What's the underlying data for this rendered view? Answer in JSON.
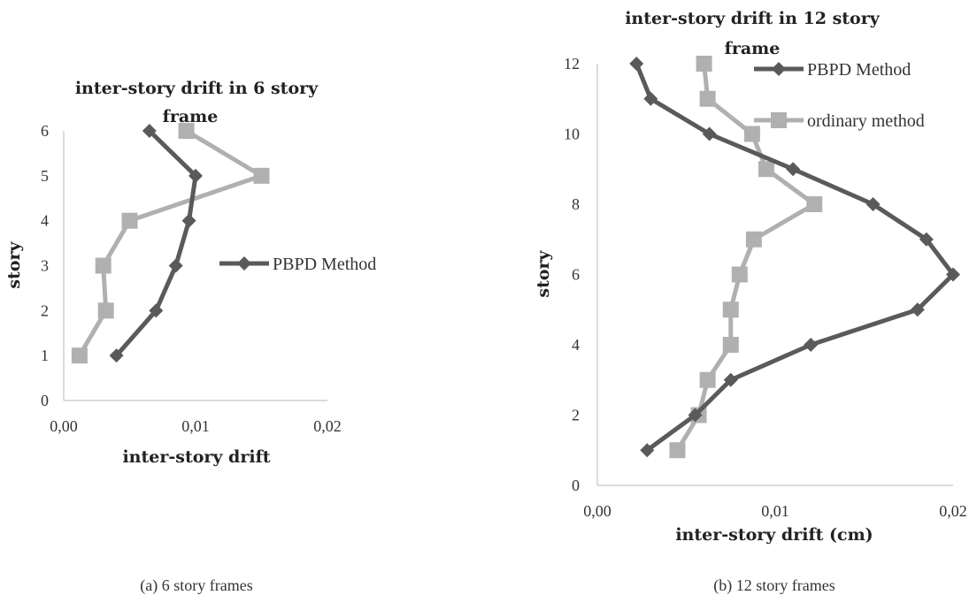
{
  "chart_data": [
    {
      "type": "line",
      "title": "inter-story drift in 6 story frame",
      "title_lines": [
        "inter-story drift in 6 story",
        "frame"
      ],
      "xlabel": "inter-story drift",
      "ylabel": "story",
      "xlim": [
        0,
        0.02
      ],
      "ylim": [
        0,
        6
      ],
      "x_ticks": [
        0,
        0.01,
        0.02
      ],
      "x_tick_labels": [
        "0,00",
        "0,01",
        "0,02"
      ],
      "y_ticks": [
        0,
        1,
        2,
        3,
        4,
        5,
        6
      ],
      "y_tick_labels": [
        "0",
        "1",
        "2",
        "3",
        "4",
        "5",
        "6"
      ],
      "legend": {
        "entries": [
          "PBPD Method"
        ],
        "placement": "right"
      },
      "caption": "(a) 6 story frames",
      "series": [
        {
          "name": "PBPD Method",
          "color": "#5a5a5a",
          "marker": "diamond",
          "points": [
            [
              0.004,
              1
            ],
            [
              0.007,
              2
            ],
            [
              0.0085,
              3
            ],
            [
              0.0095,
              4
            ],
            [
              0.01,
              5
            ],
            [
              0.0065,
              6
            ]
          ]
        },
        {
          "color": "#b0b0b0",
          "marker": "square",
          "points": [
            [
              0.0012,
              1
            ],
            [
              0.0032,
              2
            ],
            [
              0.003,
              3
            ],
            [
              0.005,
              4
            ],
            [
              0.015,
              5
            ],
            [
              0.0093,
              6
            ]
          ]
        }
      ]
    },
    {
      "type": "line",
      "title": "inter-story drift in 12 story frame",
      "title_lines": [
        "inter-story drift in 12 story",
        "frame"
      ],
      "xlabel": "inter-story drift (cm)",
      "ylabel": "story",
      "xlim": [
        0,
        0.02
      ],
      "ylim": [
        0,
        12
      ],
      "x_ticks": [
        0,
        0.01,
        0.02
      ],
      "x_tick_labels": [
        "0,00",
        "0,01",
        "0,02"
      ],
      "y_ticks": [
        0,
        2,
        4,
        6,
        8,
        10,
        12
      ],
      "y_tick_labels": [
        "0",
        "2",
        "4",
        "6",
        "8",
        "10",
        "12"
      ],
      "legend": {
        "entries": [
          "PBPD Method",
          "ordinary method"
        ],
        "placement": "top-right"
      },
      "caption": "(b) 12 story frames",
      "series": [
        {
          "name": "PBPD Method",
          "color": "#5a5a5a",
          "marker": "diamond",
          "points": [
            [
              0.0028,
              1
            ],
            [
              0.0055,
              2
            ],
            [
              0.0075,
              3
            ],
            [
              0.012,
              4
            ],
            [
              0.018,
              5
            ],
            [
              0.02,
              6
            ],
            [
              0.0185,
              7
            ],
            [
              0.0155,
              8
            ],
            [
              0.011,
              9
            ],
            [
              0.0063,
              10
            ],
            [
              0.003,
              11
            ],
            [
              0.0022,
              12
            ]
          ]
        },
        {
          "name": "ordinary method",
          "color": "#b0b0b0",
          "marker": "square",
          "points": [
            [
              0.0045,
              1
            ],
            [
              0.0057,
              2
            ],
            [
              0.0062,
              3
            ],
            [
              0.0075,
              4
            ],
            [
              0.0075,
              5
            ],
            [
              0.008,
              6
            ],
            [
              0.0088,
              7
            ],
            [
              0.0122,
              8
            ],
            [
              0.0095,
              9
            ],
            [
              0.0087,
              10
            ],
            [
              0.0062,
              11
            ],
            [
              0.006,
              12
            ]
          ]
        }
      ]
    }
  ]
}
